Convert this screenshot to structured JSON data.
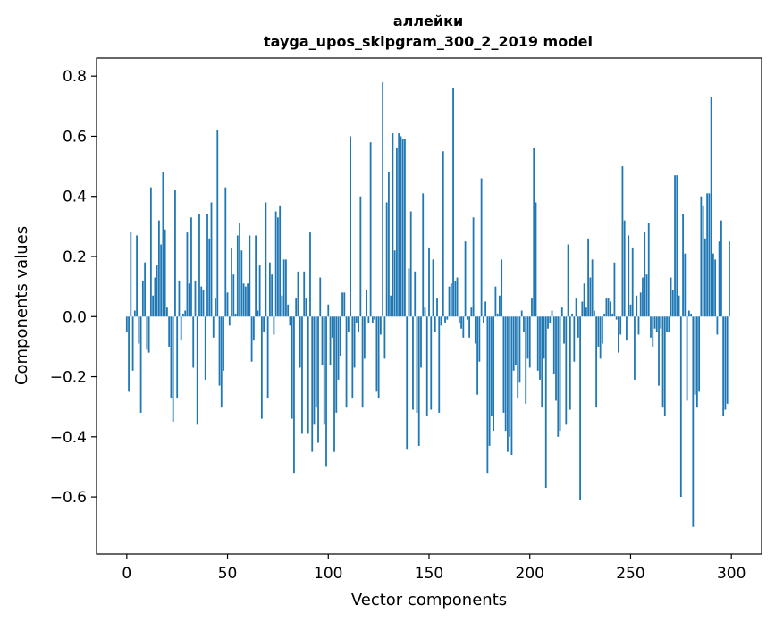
{
  "chart_data": {
    "type": "bar",
    "title": "аллейки",
    "subtitle": "tayga_upos_skipgram_300_2_2019 model",
    "xlabel": "Vector components",
    "ylabel": "Components values",
    "xlim": [
      -15,
      315
    ],
    "ylim": [
      -0.79,
      0.86
    ],
    "xticks": [
      0,
      50,
      100,
      150,
      200,
      250,
      300
    ],
    "xtick_labels": [
      "0",
      "50",
      "100",
      "150",
      "200",
      "250",
      "300"
    ],
    "yticks": [
      -0.6,
      -0.4,
      -0.2,
      0.0,
      0.2,
      0.4,
      0.6,
      0.8
    ],
    "ytick_labels": [
      "−0.6",
      "−0.4",
      "−0.2",
      "0.0",
      "0.2",
      "0.4",
      "0.6",
      "0.8"
    ],
    "bar_color": "#1f77b4",
    "grid": false,
    "x": "0..299",
    "values": [
      -0.05,
      -0.25,
      0.28,
      -0.18,
      0.02,
      0.27,
      -0.09,
      -0.32,
      0.12,
      0.18,
      -0.11,
      -0.12,
      0.43,
      0.07,
      0.13,
      0.17,
      0.32,
      0.24,
      0.48,
      0.29,
      0.03,
      -0.1,
      -0.27,
      -0.35,
      0.42,
      -0.27,
      0.12,
      -0.08,
      0.01,
      0.02,
      0.28,
      0.11,
      0.33,
      -0.17,
      0.12,
      -0.36,
      0.34,
      0.1,
      0.09,
      -0.21,
      0.34,
      0.26,
      0.38,
      -0.07,
      0.06,
      0.62,
      -0.23,
      -0.3,
      -0.18,
      0.43,
      0.08,
      -0.03,
      0.23,
      0.14,
      0.01,
      0.27,
      0.31,
      0.22,
      0.11,
      0.1,
      0.11,
      0.27,
      -0.15,
      -0.08,
      0.27,
      0.02,
      0.17,
      -0.34,
      -0.05,
      0.38,
      -0.27,
      0.18,
      0.14,
      -0.06,
      0.35,
      0.33,
      0.37,
      0.07,
      0.19,
      0.19,
      0.04,
      -0.03,
      -0.34,
      -0.52,
      0.06,
      0.15,
      -0.17,
      -0.39,
      0.15,
      0.06,
      -0.39,
      0.28,
      -0.45,
      -0.36,
      -0.3,
      -0.42,
      0.13,
      -0.16,
      -0.36,
      -0.5,
      0.04,
      -0.16,
      -0.07,
      -0.45,
      -0.32,
      -0.21,
      -0.13,
      0.08,
      0.08,
      -0.3,
      -0.05,
      0.6,
      -0.27,
      -0.17,
      -0.02,
      -0.05,
      0.4,
      -0.3,
      -0.14,
      0.09,
      -0.02,
      0.58,
      -0.02,
      -0.01,
      -0.25,
      -0.27,
      -0.06,
      0.78,
      -0.14,
      0.38,
      0.48,
      0.07,
      0.61,
      0.22,
      0.56,
      0.61,
      0.6,
      0.59,
      0.59,
      -0.44,
      0.16,
      0.35,
      -0.31,
      0.15,
      -0.32,
      -0.43,
      -0.17,
      0.41,
      0.03,
      -0.33,
      0.23,
      -0.31,
      0.19,
      -0.05,
      0.06,
      -0.32,
      -0.03,
      0.55,
      -0.02,
      -0.01,
      0.1,
      0.11,
      0.76,
      0.12,
      0.13,
      -0.02,
      -0.04,
      -0.07,
      0.25,
      -0.01,
      -0.07,
      0.03,
      0.33,
      -0.09,
      -0.26,
      -0.15,
      0.46,
      -0.02,
      0.05,
      -0.52,
      -0.43,
      -0.33,
      -0.38,
      0.1,
      0.01,
      0.07,
      0.19,
      -0.32,
      -0.38,
      -0.45,
      -0.4,
      -0.46,
      -0.18,
      -0.16,
      -0.27,
      -0.22,
      0.02,
      -0.05,
      -0.29,
      -0.14,
      -0.17,
      0.06,
      0.56,
      0.38,
      -0.18,
      -0.21,
      -0.3,
      -0.14,
      -0.57,
      -0.04,
      -0.02,
      0.02,
      -0.19,
      -0.28,
      -0.4,
      -0.38,
      0.03,
      -0.09,
      -0.36,
      0.24,
      -0.31,
      0.01,
      -0.15,
      0.06,
      -0.07,
      -0.61,
      0.05,
      0.11,
      0.03,
      0.26,
      0.13,
      0.19,
      0.02,
      -0.3,
      -0.1,
      -0.14,
      -0.09,
      0.01,
      0.06,
      0.06,
      0.05,
      0.01,
      0.18,
      -0.01,
      -0.12,
      -0.06,
      0.5,
      0.32,
      -0.08,
      0.27,
      0.04,
      0.23,
      -0.21,
      0.07,
      -0.06,
      0.08,
      0.13,
      0.28,
      0.14,
      0.31,
      -0.07,
      -0.1,
      -0.04,
      -0.05,
      -0.23,
      -0.04,
      -0.3,
      -0.33,
      -0.05,
      -0.05,
      0.13,
      0.09,
      0.47,
      0.47,
      0.07,
      -0.6,
      0.34,
      0.21,
      -0.28,
      0.02,
      0.01,
      -0.7,
      -0.26,
      -0.3,
      -0.25,
      0.4,
      0.37,
      0.26,
      0.41,
      0.41,
      0.73,
      0.21,
      0.19,
      -0.06,
      0.25,
      0.32,
      -0.33,
      -0.31,
      -0.29,
      0.25
    ]
  }
}
